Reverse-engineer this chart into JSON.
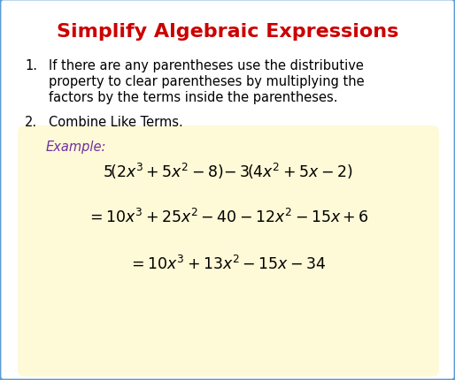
{
  "title": "Simplify Algebraic Expressions",
  "title_color": "#cc0000",
  "title_fontsize": 16,
  "background_color": "#ffffff",
  "border_color": "#5b9bd5",
  "border_linewidth": 2.0,
  "item1_number": "1.",
  "item1_text_line1": "If there are any parentheses use the distributive",
  "item1_text_line2": "property to clear parentheses by multiplying the",
  "item1_text_line3": "factors by the terms inside the parentheses.",
  "item2_number": "2.",
  "item2_text": "Combine Like Terms.",
  "example_box_color": "#fef9d7",
  "example_box_border": "#c8b560",
  "example_label": "Example:",
  "example_label_color": "#7030a0",
  "text_color": "#000000",
  "math_color": "#000000",
  "body_fontsize": 10.5,
  "math_fontsize": 12.5
}
